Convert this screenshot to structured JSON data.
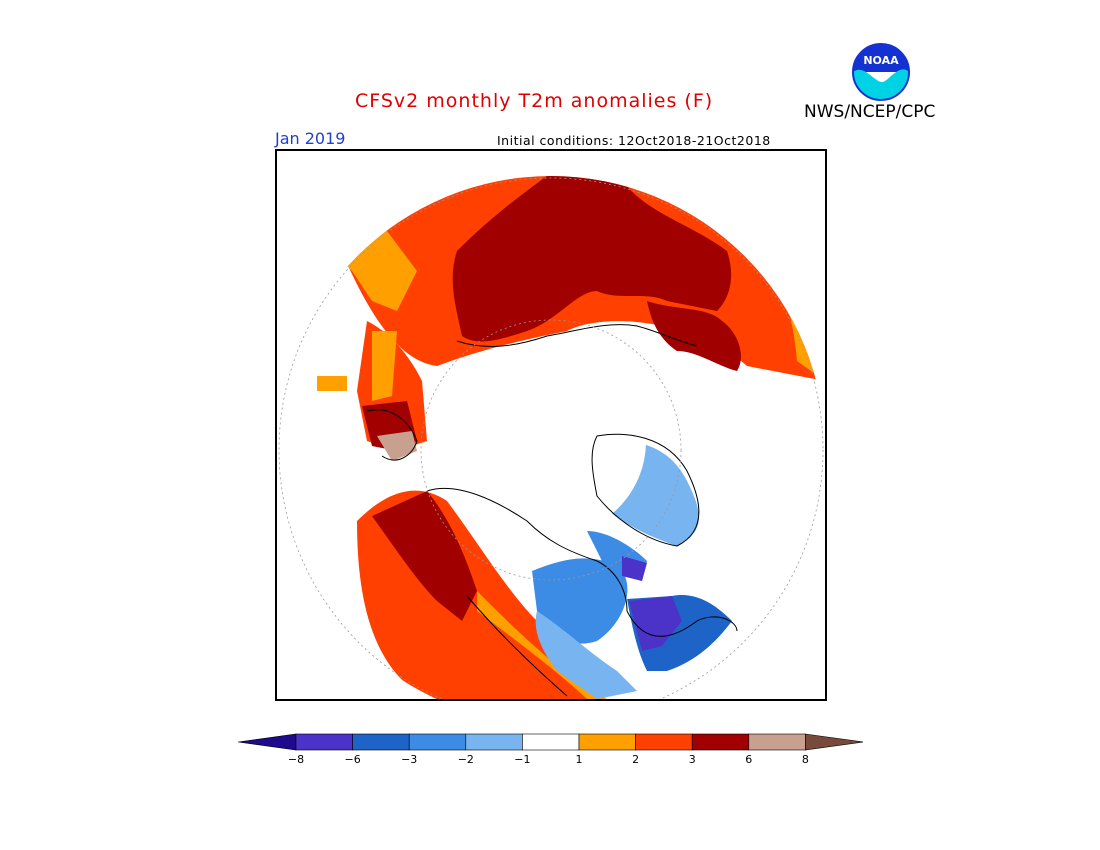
{
  "header": {
    "title": "CFSv2 monthly T2m anomalies (F)",
    "period": "Jan 2019",
    "initial_conditions": "Initial conditions: 12Oct2018-21Oct2018",
    "agency": "NWS/NCEP/CPC",
    "logo_text": "NOAA"
  },
  "legend": {
    "tick_labels": [
      "-8",
      "-6",
      "-3",
      "-2",
      "-1",
      "1",
      "2",
      "3",
      "6",
      "8"
    ],
    "colors": {
      "below_min": "#1e0a8c",
      "bins": [
        "#4b32c8",
        "#1e64c8",
        "#3c8ce6",
        "#78b4f0",
        "#ffffff",
        "#ffa000",
        "#ff4000",
        "#a00000",
        "#c8a090"
      ],
      "above_max": "#784a3c"
    }
  },
  "map": {
    "projection": "north-polar-stereographic",
    "anomaly_colors": {
      "warm_light": "#ffa000",
      "warm_mid": "#ff4000",
      "warm_dark": "#a00000",
      "warm_extreme": "#c8a090",
      "cold_light": "#78b4f0",
      "cold_mid": "#3c8ce6",
      "cold_dark": "#1e64c8",
      "cold_extreme": "#4b32c8"
    }
  }
}
